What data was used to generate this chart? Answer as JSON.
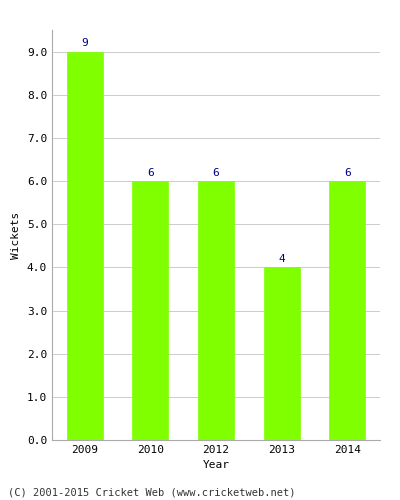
{
  "categories": [
    "2009",
    "2010",
    "2012",
    "2013",
    "2014"
  ],
  "values": [
    9,
    6,
    6,
    4,
    6
  ],
  "bar_color": "#7FFF00",
  "bar_edge_color": "#7FFF00",
  "ylabel": "Wickets",
  "xlabel": "Year",
  "ylim": [
    0,
    9.5
  ],
  "yticks": [
    0.0,
    1.0,
    2.0,
    3.0,
    4.0,
    5.0,
    6.0,
    7.0,
    8.0,
    9.0
  ],
  "annotation_color": "#00008B",
  "annotation_fontsize": 8,
  "footer_text": "(C) 2001-2015 Cricket Web (www.cricketweb.net)",
  "footer_fontsize": 7.5,
  "grid_color": "#cccccc",
  "background_color": "#ffffff",
  "bar_width": 0.55,
  "ylabel_fontsize": 8,
  "xlabel_fontsize": 8,
  "tick_fontsize": 8
}
